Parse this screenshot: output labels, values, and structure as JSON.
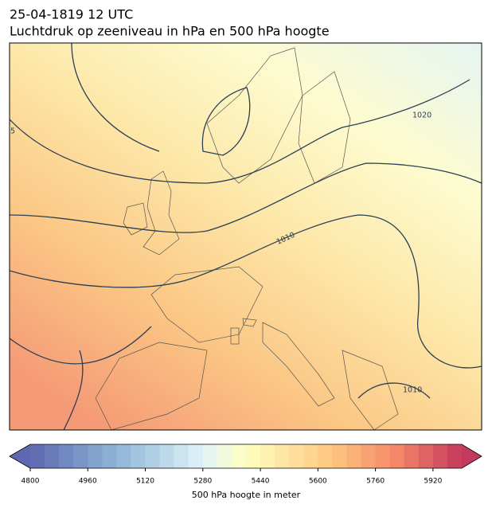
{
  "header": {
    "title": "25-04-1819 12 UTC",
    "subtitle": "Luchtdruk op zeeniveau in hPa en 500 hPa hoogte"
  },
  "map": {
    "contour_labels": [
      "1020",
      "1010",
      "1010",
      "5"
    ]
  },
  "colorbar": {
    "lim": [
      4800,
      6000
    ],
    "ticks": [
      4800,
      4960,
      5120,
      5280,
      5440,
      5600,
      5760,
      5920
    ],
    "label": "500 hPa hoogte in meter"
  }
}
